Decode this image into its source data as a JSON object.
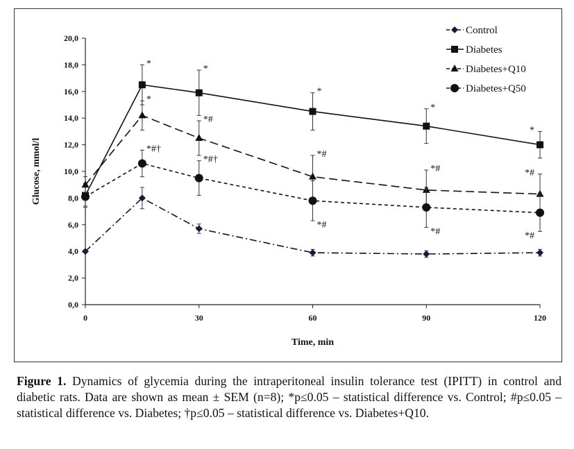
{
  "chart_data": {
    "type": "line",
    "xlabel": "Time, min",
    "ylabel": "Glucose, mmol/l",
    "xlim": [
      0,
      120
    ],
    "ylim": [
      0,
      20
    ],
    "x_ticks": [
      "0",
      "30",
      "60",
      "90",
      "120"
    ],
    "y_ticks": [
      "0,0",
      "2,0",
      "4,0",
      "6,0",
      "8,0",
      "10,0",
      "12,0",
      "14,0",
      "16,0",
      "18,0",
      "20,0"
    ],
    "grid": false,
    "legend_position": "top-right",
    "x": [
      0,
      15,
      30,
      60,
      90,
      120
    ],
    "series": [
      {
        "name": "Control",
        "marker": "diamond",
        "line": "dash-dot",
        "values": [
          4.0,
          8.0,
          5.7,
          3.9,
          3.8,
          3.9
        ],
        "sem": [
          0.1,
          0.8,
          0.35,
          0.25,
          0.25,
          0.25
        ],
        "annotations": [
          "",
          "",
          "",
          "",
          "",
          ""
        ]
      },
      {
        "name": "Diabetes",
        "marker": "square",
        "line": "solid",
        "values": [
          8.2,
          16.5,
          15.9,
          14.5,
          13.4,
          12.0
        ],
        "sem": [
          0.9,
          1.5,
          1.7,
          1.4,
          1.3,
          1.0
        ],
        "annotations": [
          "",
          "*",
          "*",
          "*",
          "*",
          "*"
        ]
      },
      {
        "name": "Diabetes+Q10",
        "marker": "triangle",
        "line": "long-dash",
        "values": [
          9.0,
          14.2,
          12.5,
          9.6,
          8.6,
          8.3
        ],
        "sem": [
          0.6,
          1.1,
          1.3,
          1.6,
          1.5,
          1.5
        ],
        "annotations": [
          "",
          "*",
          "*#",
          "*#",
          "*#",
          "*#"
        ]
      },
      {
        "name": "Diabetes+Q50",
        "marker": "circle",
        "line": "short-dash",
        "values": [
          8.1,
          10.6,
          9.5,
          7.8,
          7.3,
          6.9
        ],
        "sem": [
          0.7,
          1.0,
          1.3,
          1.5,
          1.5,
          1.4
        ],
        "annotations": [
          "",
          "*#†",
          "*#†",
          "*#",
          "*#",
          "*#"
        ]
      }
    ]
  },
  "caption": {
    "label": "Figure 1.",
    "text": " Dynamics of glycemia during the intraperitoneal insulin tolerance test (IPITT) in control and diabetic rats. Data are shown as mean ± SEM (n=8); *p≤0.05 – statistical difference vs. Control; #p≤0.05 – statistical difference vs. Diabetes; †p≤0.05 – statistical difference vs. Diabetes+Q10."
  }
}
